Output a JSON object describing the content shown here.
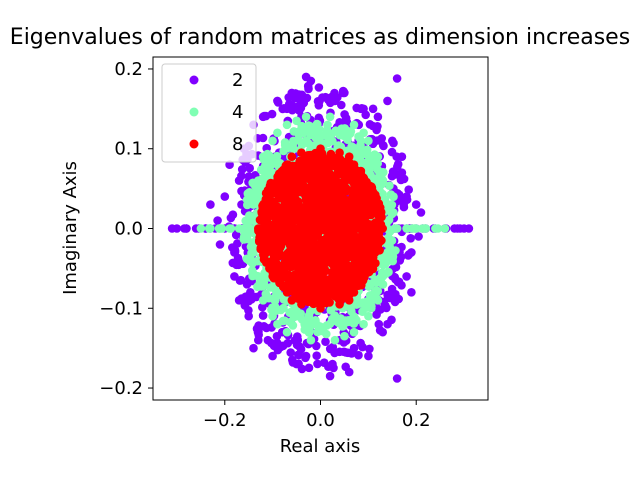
{
  "chart_data": {
    "type": "scatter",
    "title": "Eigenvalues of random matrices as dimension increases",
    "xlabel": "Real axis",
    "ylabel": "Imaginary Axis",
    "xlim": [
      -0.35,
      0.35
    ],
    "ylim": [
      -0.215,
      0.215
    ],
    "xticks": [
      -0.2,
      0.0,
      0.2
    ],
    "xtick_labels": [
      "−0.2",
      "0.0",
      "0.2"
    ],
    "yticks": [
      -0.2,
      -0.1,
      0.0,
      0.1,
      0.2
    ],
    "ytick_labels": [
      "−0.2",
      "−0.1",
      "0.0",
      "0.1",
      "0.2"
    ],
    "grid": false,
    "legend_placement": "upper-left",
    "series": [
      {
        "name": "2",
        "color": "#8000ff",
        "real_extent": [
          -0.31,
          0.31
        ],
        "imag_extent": [
          -0.19,
          0.19
        ],
        "points": [
          [
            -0.31,
            0.0
          ],
          [
            -0.3,
            0.0
          ],
          [
            -0.28,
            0.0
          ],
          [
            -0.26,
            0.0
          ],
          [
            -0.24,
            0.0
          ],
          [
            -0.22,
            0.0
          ],
          [
            -0.2,
            0.0
          ],
          [
            -0.18,
            0.0
          ],
          [
            0.2,
            0.0
          ],
          [
            0.22,
            0.0
          ],
          [
            0.24,
            0.0
          ],
          [
            0.26,
            0.0
          ],
          [
            0.28,
            0.0
          ],
          [
            0.3,
            0.0
          ],
          [
            0.31,
            0.0
          ],
          [
            -0.23,
            0.03
          ],
          [
            -0.21,
            -0.02
          ],
          [
            -0.2,
            0.04
          ],
          [
            0.2,
            0.03
          ],
          [
            0.19,
            -0.03
          ],
          [
            0.21,
            0.02
          ],
          [
            -0.17,
            0.06
          ],
          [
            -0.18,
            -0.06
          ],
          [
            0.17,
            0.07
          ],
          [
            0.18,
            -0.06
          ],
          [
            -0.16,
            0.1
          ],
          [
            -0.15,
            -0.11
          ],
          [
            0.15,
            0.11
          ],
          [
            0.14,
            -0.12
          ],
          [
            -0.12,
            0.14
          ],
          [
            -0.13,
            -0.14
          ],
          [
            0.12,
            0.14
          ],
          [
            0.13,
            -0.13
          ],
          [
            -0.09,
            0.16
          ],
          [
            -0.1,
            -0.16
          ],
          [
            0.09,
            0.15
          ],
          [
            0.1,
            -0.16
          ],
          [
            -0.06,
            0.17
          ],
          [
            -0.05,
            -0.17
          ],
          [
            0.05,
            0.17
          ],
          [
            0.06,
            -0.18
          ],
          [
            -0.02,
            0.185
          ],
          [
            0.02,
            -0.185
          ],
          [
            0.16,
            0.188
          ],
          [
            0.16,
            -0.188
          ],
          [
            -0.03,
            0.19
          ],
          [
            0.07,
            -0.15
          ],
          [
            -0.07,
            0.15
          ],
          [
            -0.14,
            0.13
          ],
          [
            -0.11,
            -0.14
          ],
          [
            0.11,
            0.15
          ],
          [
            0.08,
            0.13
          ],
          [
            -0.08,
            -0.13
          ],
          [
            -0.19,
            0.08
          ],
          [
            0.19,
            -0.08
          ],
          [
            -0.17,
            -0.09
          ],
          [
            0.17,
            0.09
          ],
          [
            -0.16,
            0.0
          ],
          [
            -0.15,
            0.0
          ],
          [
            0.16,
            0.0
          ],
          [
            0.18,
            0.0
          ],
          [
            -0.025,
            0.175
          ],
          [
            0.025,
            -0.17
          ],
          [
            -0.165,
            0.03
          ],
          [
            0.165,
            -0.03
          ],
          [
            -0.18,
            -0.03
          ],
          [
            0.18,
            0.04
          ],
          [
            0.205,
            -0.01
          ],
          [
            -0.215,
            0.01
          ],
          [
            -0.04,
            0.14
          ],
          [
            0.04,
            -0.14
          ],
          [
            0.03,
            0.16
          ],
          [
            -0.03,
            -0.16
          ],
          [
            0.14,
            0.16
          ],
          [
            -0.14,
            -0.15
          ]
        ]
      },
      {
        "name": "4",
        "color": "#80ffb4",
        "real_extent": [
          -0.25,
          0.26
        ],
        "imag_extent": [
          -0.14,
          0.14
        ],
        "points": [
          [
            -0.25,
            0.0
          ],
          [
            -0.23,
            0.0
          ],
          [
            -0.21,
            0.0
          ],
          [
            -0.19,
            0.0
          ],
          [
            -0.17,
            0.0
          ],
          [
            -0.15,
            0.0
          ],
          [
            -0.13,
            0.0
          ],
          [
            0.14,
            0.0
          ],
          [
            0.16,
            0.0
          ],
          [
            0.18,
            0.0
          ],
          [
            0.2,
            0.0
          ],
          [
            0.22,
            0.0
          ],
          [
            0.24,
            0.0
          ],
          [
            0.26,
            0.0
          ],
          [
            -0.13,
            0.06
          ],
          [
            -0.13,
            -0.06
          ],
          [
            0.13,
            0.06
          ],
          [
            0.13,
            -0.06
          ],
          [
            -0.12,
            0.09
          ],
          [
            -0.12,
            -0.09
          ],
          [
            0.12,
            0.09
          ],
          [
            0.12,
            -0.09
          ],
          [
            -0.1,
            0.11
          ],
          [
            -0.1,
            -0.11
          ],
          [
            0.1,
            0.11
          ],
          [
            0.1,
            -0.11
          ],
          [
            -0.07,
            0.13
          ],
          [
            -0.07,
            -0.13
          ],
          [
            0.07,
            0.13
          ],
          [
            0.07,
            -0.13
          ],
          [
            -0.03,
            0.14
          ],
          [
            0.03,
            -0.14
          ],
          [
            0.02,
            0.14
          ],
          [
            -0.02,
            -0.14
          ],
          [
            -0.14,
            0.03
          ],
          [
            -0.14,
            -0.03
          ],
          [
            0.14,
            0.03
          ],
          [
            0.14,
            -0.03
          ],
          [
            -0.11,
            0.02
          ],
          [
            0.11,
            -0.02
          ],
          [
            -0.09,
            0.12
          ],
          [
            0.09,
            -0.12
          ],
          [
            0.09,
            0.12
          ],
          [
            -0.09,
            -0.12
          ],
          [
            -0.135,
            0.045
          ],
          [
            0.135,
            -0.045
          ],
          [
            -0.12,
            -0.04
          ],
          [
            0.12,
            0.04
          ],
          [
            -0.05,
            0.135
          ],
          [
            0.05,
            -0.135
          ]
        ]
      },
      {
        "name": "8",
        "color": "#ff0000",
        "real_extent": [
          -0.13,
          0.13
        ],
        "imag_extent": [
          -0.1,
          0.1
        ],
        "points": [
          [
            -0.13,
            0.0
          ],
          [
            -0.12,
            0.0
          ],
          [
            -0.11,
            0.0
          ],
          [
            0.11,
            0.0
          ],
          [
            0.12,
            0.0
          ],
          [
            0.13,
            0.0
          ],
          [
            -0.09,
            0.06
          ],
          [
            -0.09,
            -0.06
          ],
          [
            0.09,
            0.06
          ],
          [
            0.09,
            -0.06
          ],
          [
            -0.07,
            0.08
          ],
          [
            -0.07,
            -0.08
          ],
          [
            0.07,
            0.08
          ],
          [
            0.07,
            -0.08
          ],
          [
            -0.04,
            0.095
          ],
          [
            0.04,
            -0.095
          ],
          [
            0.04,
            0.095
          ],
          [
            -0.04,
            -0.095
          ],
          [
            0.0,
            0.1
          ],
          [
            0.0,
            -0.1
          ],
          [
            -0.1,
            0.03
          ],
          [
            0.1,
            -0.03
          ],
          [
            0.1,
            0.03
          ],
          [
            -0.1,
            -0.03
          ],
          [
            -0.06,
            0.09
          ],
          [
            0.06,
            -0.09
          ],
          [
            0.06,
            0.09
          ],
          [
            -0.06,
            -0.09
          ],
          [
            -0.08,
            0.0
          ],
          [
            0.08,
            0.0
          ],
          [
            0.0,
            0.0
          ],
          [
            -0.04,
            0.0
          ],
          [
            0.04,
            0.0
          ],
          [
            0.0,
            0.05
          ],
          [
            0.0,
            -0.05
          ]
        ]
      }
    ]
  }
}
